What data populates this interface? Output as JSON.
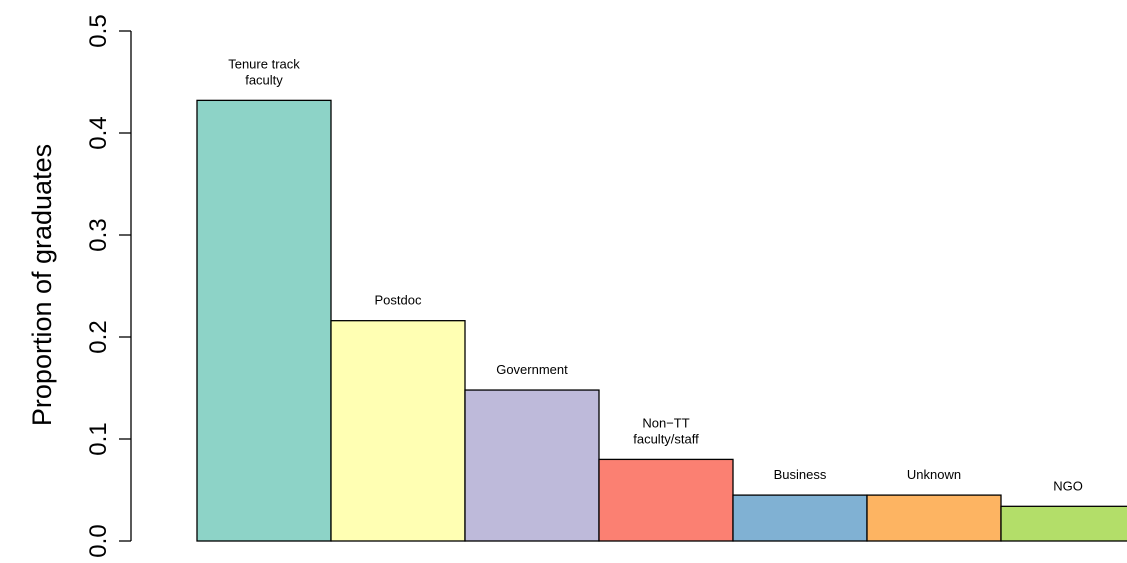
{
  "chart_data": {
    "type": "bar",
    "title": "",
    "xlabel": "",
    "ylabel": "Proportion of graduates",
    "ylim": [
      0,
      0.5
    ],
    "yticks": [
      "0.0",
      "0.1",
      "0.2",
      "0.3",
      "0.4",
      "0.5"
    ],
    "grid": false,
    "legend": "none",
    "categories": [
      [
        "Tenure track",
        "faculty"
      ],
      [
        "Postdoc"
      ],
      [
        "Government"
      ],
      [
        "Non−TT",
        "faculty/staff"
      ],
      [
        "Business"
      ],
      [
        "Unknown"
      ],
      [
        "NGO"
      ]
    ],
    "values": [
      0.432,
      0.216,
      0.148,
      0.08,
      0.045,
      0.045,
      0.034
    ],
    "colors": [
      "#8dd3c7",
      "#ffffb3",
      "#bebada",
      "#fb8072",
      "#80b1d3",
      "#fdb462",
      "#b3de69"
    ]
  }
}
